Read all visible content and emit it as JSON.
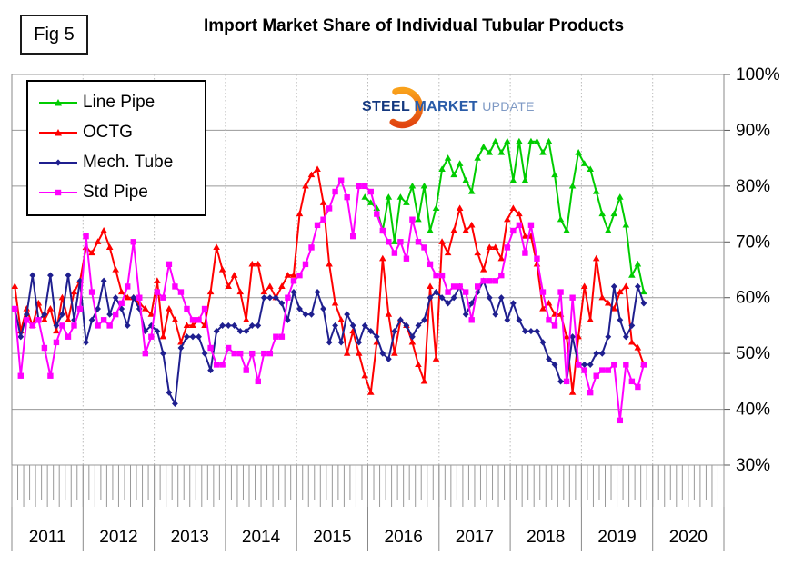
{
  "figure": {
    "fig_label": "Fig 5",
    "title": "Import Market Share of Individual Tubular Products"
  },
  "logo": {
    "word1": "STEEL",
    "word2": "MARKET",
    "word3": "UPDATE",
    "word1_color": "#14387F",
    "word2_color": "#2A5CA8",
    "word3_color": "#7E99C4",
    "crescent_color_top": "#F9A11B",
    "crescent_color_bottom": "#E1440F"
  },
  "chart_data": {
    "type": "line",
    "title": "Import Market Share of Individual Tubular Products",
    "x_unit": "month",
    "x_start": "2011-01",
    "x_end": "2019-11",
    "x_axis_years": [
      "2011",
      "2012",
      "2013",
      "2014",
      "2015",
      "2016",
      "2017",
      "2018",
      "2019",
      "2020"
    ],
    "y_ticks": [
      "100%",
      "90%",
      "80%",
      "70%",
      "60%",
      "50%",
      "40%",
      "30%"
    ],
    "ylim": [
      30,
      100
    ],
    "grid": "horizontal solid gray at 10% steps; dotted vertical lines at year boundaries; monthly minor ticks below plot",
    "legend_position": "top-left",
    "y_axis_side": "right",
    "series": [
      {
        "name": "Line Pipe",
        "color": "#00CC00",
        "marker": "triangle",
        "values": [
          null,
          null,
          null,
          null,
          null,
          null,
          null,
          null,
          null,
          null,
          null,
          null,
          null,
          null,
          null,
          null,
          null,
          null,
          null,
          null,
          null,
          null,
          null,
          null,
          null,
          null,
          null,
          null,
          null,
          null,
          null,
          null,
          null,
          null,
          null,
          null,
          null,
          null,
          null,
          null,
          null,
          null,
          null,
          null,
          null,
          null,
          null,
          null,
          null,
          null,
          null,
          null,
          null,
          null,
          null,
          null,
          null,
          null,
          null,
          78,
          77,
          76,
          72,
          78,
          70,
          78,
          77,
          80,
          74,
          80,
          72,
          76,
          83,
          85,
          82,
          84,
          81,
          79,
          85,
          87,
          86,
          88,
          86,
          88,
          81,
          88,
          81,
          88,
          88,
          86,
          88,
          82,
          74,
          72,
          80,
          86,
          84,
          83,
          79,
          75,
          72,
          75,
          78,
          73,
          64,
          66,
          61
        ]
      },
      {
        "name": "OCTG",
        "color": "#FF0000",
        "marker": "triangle",
        "values": [
          62,
          54,
          58,
          55,
          59,
          56,
          58,
          54,
          60,
          56,
          61,
          63,
          69,
          68,
          70,
          72,
          69,
          65,
          61,
          60,
          60,
          59,
          58,
          57,
          63,
          53,
          58,
          56,
          52,
          55,
          55,
          56,
          55,
          61,
          69,
          65,
          62,
          64,
          61,
          56,
          66,
          66,
          61,
          62,
          60,
          62,
          64,
          64,
          75,
          80,
          82,
          83,
          77,
          66,
          59,
          56,
          50,
          54,
          50,
          46,
          43,
          52,
          67,
          57,
          50,
          56,
          55,
          52,
          48,
          45,
          62,
          49,
          70,
          68,
          72,
          76,
          72,
          73,
          68,
          65,
          69,
          69,
          67,
          74,
          76,
          75,
          71,
          71,
          66,
          58,
          59,
          57,
          57,
          53,
          43,
          53,
          62,
          56,
          67,
          60,
          59,
          58,
          61,
          62,
          52,
          51,
          48
        ]
      },
      {
        "name": "Mech. Tube",
        "color": "#1F1F8F",
        "marker": "diamond",
        "values": [
          58,
          53,
          57,
          64,
          56,
          57,
          64,
          55,
          57,
          64,
          56,
          63,
          52,
          56,
          58,
          63,
          57,
          60,
          58,
          55,
          60,
          58,
          54,
          55,
          54,
          50,
          43,
          41,
          51,
          53,
          53,
          53,
          50,
          47,
          54,
          55,
          55,
          55,
          54,
          54,
          55,
          55,
          60,
          60,
          60,
          59,
          56,
          61,
          58,
          57,
          57,
          61,
          58,
          52,
          55,
          52,
          57,
          55,
          52,
          55,
          54,
          53,
          50,
          49,
          54,
          56,
          55,
          53,
          55,
          56,
          60,
          61,
          60,
          59,
          60,
          62,
          57,
          59,
          61,
          63,
          60,
          57,
          60,
          56,
          59,
          56,
          54,
          54,
          54,
          52,
          49,
          48,
          45,
          45,
          53,
          48,
          48,
          48,
          50,
          50,
          53,
          62,
          56,
          53,
          55,
          62,
          59
        ]
      },
      {
        "name": "Std Pipe",
        "color": "#FF00FF",
        "marker": "square",
        "values": [
          58,
          46,
          56,
          55,
          56,
          51,
          46,
          52,
          55,
          53,
          55,
          58,
          71,
          61,
          55,
          56,
          55,
          57,
          59,
          62,
          70,
          60,
          50,
          53,
          61,
          60,
          66,
          62,
          61,
          58,
          56,
          56,
          58,
          51,
          48,
          48,
          51,
          50,
          50,
          47,
          50,
          45,
          50,
          50,
          53,
          53,
          60,
          63,
          64,
          66,
          69,
          73,
          74,
          76,
          79,
          81,
          78,
          71,
          80,
          80,
          79,
          75,
          72,
          70,
          68,
          70,
          67,
          74,
          70,
          69,
          66,
          64,
          64,
          61,
          62,
          62,
          61,
          56,
          62,
          63,
          63,
          63,
          64,
          69,
          72,
          73,
          68,
          73,
          67,
          61,
          56,
          55,
          61,
          45,
          60,
          48,
          47,
          43,
          46,
          47,
          47,
          48,
          38,
          48,
          45,
          44,
          48
        ]
      }
    ]
  }
}
